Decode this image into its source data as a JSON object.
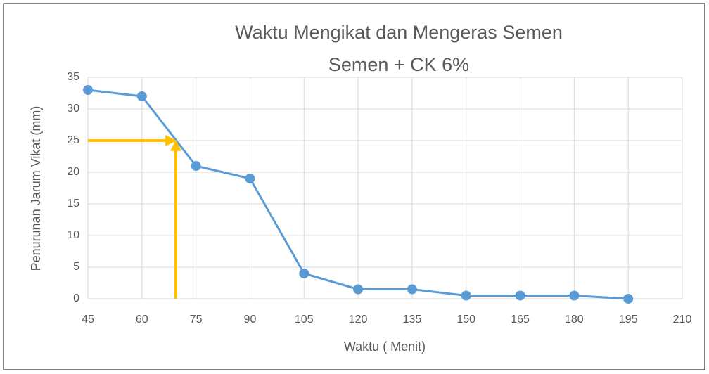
{
  "chart_data": {
    "type": "line",
    "title": "Waktu Mengikat dan Mengeras Semen",
    "subtitle": "Semen + CK 6%",
    "x_label": "Waktu ( Menit)",
    "y_label": "Penurunan Jarum Vikat (mm)",
    "x": [
      45,
      60,
      75,
      90,
      105,
      120,
      135,
      150,
      165,
      180,
      195
    ],
    "series": [
      {
        "name": "Semen + CK 6%",
        "color": "#5b9bd5",
        "values": [
          33,
          32,
          21,
          19,
          4,
          1.5,
          1.5,
          0.5,
          0.5,
          0.5,
          0
        ]
      }
    ],
    "xlim": [
      45,
      210
    ],
    "xticks": [
      45,
      60,
      75,
      90,
      105,
      120,
      135,
      150,
      165,
      180,
      195,
      210
    ],
    "ylim": [
      0,
      35
    ],
    "yticks": [
      0,
      5,
      10,
      15,
      20,
      25,
      30,
      35
    ],
    "grid": true,
    "annotation": {
      "x": 69.4,
      "y": 25,
      "color": "#ffc000"
    }
  }
}
